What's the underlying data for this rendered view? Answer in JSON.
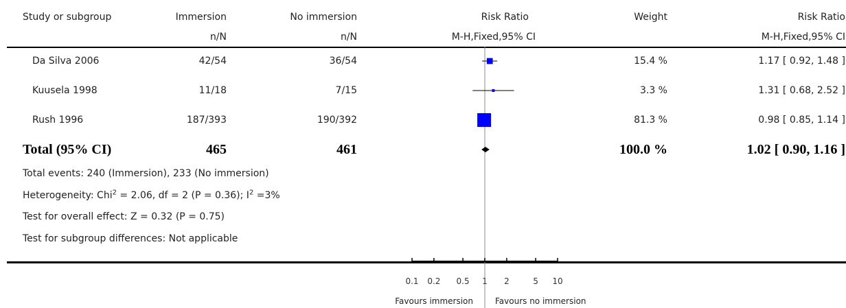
{
  "header": {
    "study": "Study or subgroup",
    "group1": "Immersion",
    "group2": "No immersion",
    "effect": "Risk Ratio",
    "weight": "Weight",
    "effect_ci": "Risk Ratio",
    "group1_sub": "n/N",
    "group2_sub": "n/N",
    "effect_sub": "M-H,Fixed,95% CI",
    "effect_ci_sub": "M-H,Fixed,95% CI"
  },
  "studies": [
    {
      "name": "Da Silva 2006",
      "g1": "42/54",
      "g2": "36/54",
      "weight": "15.4 %",
      "ci": "1.17 [ 0.92, 1.48 ]"
    },
    {
      "name": "Kuusela 1998",
      "g1": "11/18",
      "g2": "7/15",
      "weight": "3.3 %",
      "ci": "1.31 [ 0.68, 2.52 ]"
    },
    {
      "name": "Rush 1996",
      "g1": "187/393",
      "g2": "190/392",
      "weight": "81.3 %",
      "ci": "0.98 [ 0.85, 1.14 ]"
    }
  ],
  "total": {
    "label": "Total (95% CI)",
    "g1": "465",
    "g2": "461",
    "weight": "100.0 %",
    "ci": "1.02 [ 0.90, 1.16 ]"
  },
  "notes": {
    "events": "Total events: 240 (Immersion), 233 (No immersion)",
    "het_prefix": "Heterogeneity: Chi",
    "het_mid": " = 2.06, df = 2 (P = 0.36); I",
    "het_end": " =3%",
    "sup": "2",
    "overall": "Test for overall effect: Z = 0.32 (P = 0.75)",
    "subgroup": "Test for subgroup differences: Not applicable"
  },
  "axis": {
    "favours_left": "Favours immersion",
    "favours_right": "Favours no immersion"
  },
  "chart_data": {
    "type": "scatter",
    "scale": "log",
    "xlim": [
      0.1,
      10
    ],
    "ticks": [
      0.1,
      0.2,
      0.5,
      1,
      2,
      5,
      10
    ],
    "tick_labels": [
      "0.1",
      "0.2",
      "0.5",
      "1",
      "2",
      "5",
      "10"
    ],
    "marker_color": "#0000ff",
    "points": [
      {
        "name": "Da Silva 2006",
        "rr": 1.17,
        "lo": 0.92,
        "hi": 1.48,
        "weight": 15.4
      },
      {
        "name": "Kuusela 1998",
        "rr": 1.31,
        "lo": 0.68,
        "hi": 2.52,
        "weight": 3.3
      },
      {
        "name": "Rush 1996",
        "rr": 0.98,
        "lo": 0.85,
        "hi": 1.14,
        "weight": 81.3
      }
    ],
    "total": {
      "rr": 1.02,
      "lo": 0.9,
      "hi": 1.16
    }
  }
}
